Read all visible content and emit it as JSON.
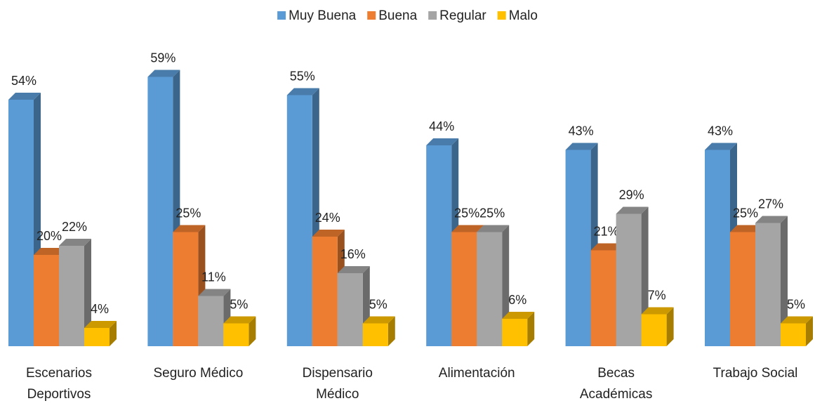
{
  "chart_data": {
    "type": "bar3d",
    "categories": [
      "Escenarios Deportivos",
      "Seguro Médico",
      "Dispensario Médico",
      "Alimentación",
      "Becas Académicas",
      "Trabajo Social"
    ],
    "series": [
      {
        "name": "Muy Buena",
        "color": "#5b9bd5",
        "values": [
          54,
          59,
          55,
          44,
          43,
          43
        ],
        "value_labels": [
          "54%",
          "59%",
          "55%",
          "44%",
          "43%",
          "43%"
        ]
      },
      {
        "name": "Buena",
        "color": "#ed7d31",
        "values": [
          20,
          25,
          24,
          25,
          21,
          25
        ],
        "value_labels": [
          "20%",
          "25%",
          "24%",
          "25%",
          "21%",
          "25%"
        ]
      },
      {
        "name": "Regular",
        "color": "#a5a5a5",
        "values": [
          22,
          11,
          16,
          25,
          29,
          27
        ],
        "value_labels": [
          "22%",
          "11%",
          "16%",
          "25%",
          "29%",
          "27%"
        ]
      },
      {
        "name": "Malo",
        "color": "#ffc000",
        "values": [
          4,
          5,
          5,
          6,
          7,
          5
        ],
        "value_labels": [
          "4%",
          "5%",
          "5%",
          "6%",
          "7%",
          "5%"
        ]
      }
    ],
    "legend": "top"
  }
}
